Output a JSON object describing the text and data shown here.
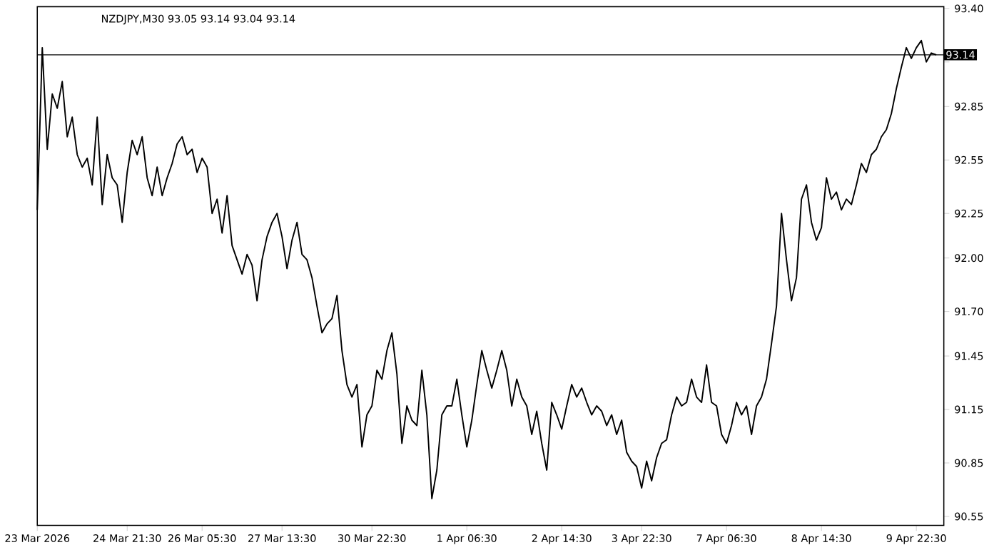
{
  "chart_data": {
    "type": "line",
    "title": "NZDJPY,M30  93.05 93.14 93.04 93.14",
    "color": "#000000",
    "categories": [
      "23 Mar 2026",
      null,
      null,
      null,
      null,
      null,
      null,
      null,
      null,
      null,
      null,
      null,
      null,
      null,
      null,
      null,
      null,
      null,
      "24 Mar 21:30",
      null,
      null,
      null,
      null,
      null,
      null,
      null,
      null,
      null,
      null,
      null,
      null,
      null,
      null,
      "26 Mar 05:30",
      null,
      null,
      null,
      null,
      null,
      null,
      null,
      null,
      null,
      null,
      null,
      null,
      null,
      null,
      null,
      "27 Mar 13:30",
      null,
      null,
      null,
      null,
      null,
      null,
      null,
      null,
      null,
      null,
      null,
      null,
      null,
      null,
      null,
      null,
      null,
      "30 Mar 22:30",
      null,
      null,
      null,
      null,
      null,
      null,
      null,
      null,
      null,
      null,
      null,
      null,
      null,
      null,
      null,
      null,
      null,
      null,
      "1 Apr 06:30",
      null,
      null,
      null,
      null,
      null,
      null,
      null,
      null,
      null,
      null,
      null,
      null,
      null,
      null,
      null,
      null,
      null,
      null,
      "2 Apr 14:30",
      null,
      null,
      null,
      null,
      null,
      null,
      null,
      null,
      null,
      null,
      null,
      null,
      null,
      null,
      null,
      "3 Apr 22:30",
      null,
      null,
      null,
      null,
      null,
      null,
      null,
      null,
      null,
      null,
      null,
      null,
      null,
      null,
      null,
      null,
      "7 Apr 06:30",
      null,
      null,
      null,
      null,
      null,
      null,
      null,
      null,
      null,
      null,
      null,
      null,
      null,
      null,
      null,
      null,
      null,
      null,
      "8 Apr 14:30",
      null,
      null,
      null,
      null,
      null,
      null,
      null,
      null,
      null,
      null,
      null,
      null,
      null,
      null,
      null,
      null,
      null,
      null,
      "9 Apr 22:30",
      null,
      null,
      null,
      null
    ],
    "values": [
      92.27,
      93.18,
      92.61,
      92.92,
      92.84,
      92.99,
      92.68,
      92.79,
      92.58,
      92.51,
      92.56,
      92.41,
      92.79,
      92.3,
      92.58,
      92.45,
      92.41,
      92.2,
      92.48,
      92.66,
      92.58,
      92.68,
      92.45,
      92.35,
      92.51,
      92.35,
      92.45,
      92.53,
      92.64,
      92.68,
      92.58,
      92.61,
      92.48,
      92.56,
      92.51,
      92.25,
      92.33,
      92.14,
      92.35,
      92.07,
      91.99,
      91.91,
      92.02,
      91.96,
      91.76,
      91.99,
      92.12,
      92.2,
      92.25,
      92.12,
      91.94,
      92.1,
      92.2,
      92.02,
      91.99,
      91.89,
      91.73,
      91.58,
      91.63,
      91.66,
      91.79,
      91.48,
      91.29,
      91.22,
      91.29,
      90.94,
      91.12,
      91.17,
      91.37,
      91.32,
      91.48,
      91.58,
      91.35,
      90.96,
      91.17,
      91.09,
      91.06,
      91.37,
      91.12,
      90.65,
      90.81,
      91.12,
      91.17,
      91.17,
      91.32,
      91.12,
      90.94,
      91.09,
      91.29,
      91.48,
      91.37,
      91.27,
      91.37,
      91.48,
      91.37,
      91.17,
      91.32,
      91.22,
      91.17,
      91.01,
      91.14,
      90.96,
      90.81,
      91.19,
      91.12,
      91.04,
      91.17,
      91.29,
      91.22,
      91.27,
      91.19,
      91.12,
      91.17,
      91.14,
      91.06,
      91.12,
      91.01,
      91.09,
      90.91,
      90.86,
      90.83,
      90.71,
      90.86,
      90.75,
      90.88,
      90.96,
      90.98,
      91.12,
      91.22,
      91.17,
      91.19,
      91.32,
      91.22,
      91.19,
      91.4,
      91.19,
      91.17,
      91.01,
      90.96,
      91.06,
      91.19,
      91.12,
      91.17,
      91.01,
      91.17,
      91.22,
      91.32,
      91.52,
      91.73,
      92.25,
      91.99,
      91.76,
      91.89,
      92.33,
      92.41,
      92.2,
      92.1,
      92.17,
      92.45,
      92.33,
      92.37,
      92.27,
      92.33,
      92.3,
      92.41,
      92.53,
      92.48,
      92.58,
      92.61,
      92.68,
      92.72,
      92.81,
      92.95,
      93.07,
      93.18,
      93.12,
      93.18,
      93.22,
      93.1,
      93.15,
      93.14
    ],
    "ylim": [
      90.5,
      93.41
    ],
    "yticks": [
      {
        "value": 90.55,
        "label": "90.55"
      },
      {
        "value": 90.85,
        "label": "90.85"
      },
      {
        "value": 91.15,
        "label": "91.15"
      },
      {
        "value": 91.45,
        "label": "91.45"
      },
      {
        "value": 91.7,
        "label": "91.70"
      },
      {
        "value": 92.0,
        "label": "92.00"
      },
      {
        "value": 92.25,
        "label": "92.25"
      },
      {
        "value": 92.55,
        "label": "92.55"
      },
      {
        "value": 92.85,
        "label": "92.85"
      },
      {
        "value": 93.1,
        "label": null
      },
      {
        "value": 93.4,
        "label": "93.40"
      }
    ],
    "ref_lines": [
      {
        "axis": "y",
        "value": 93.14,
        "label": "93.14",
        "color": "#000000"
      }
    ]
  }
}
